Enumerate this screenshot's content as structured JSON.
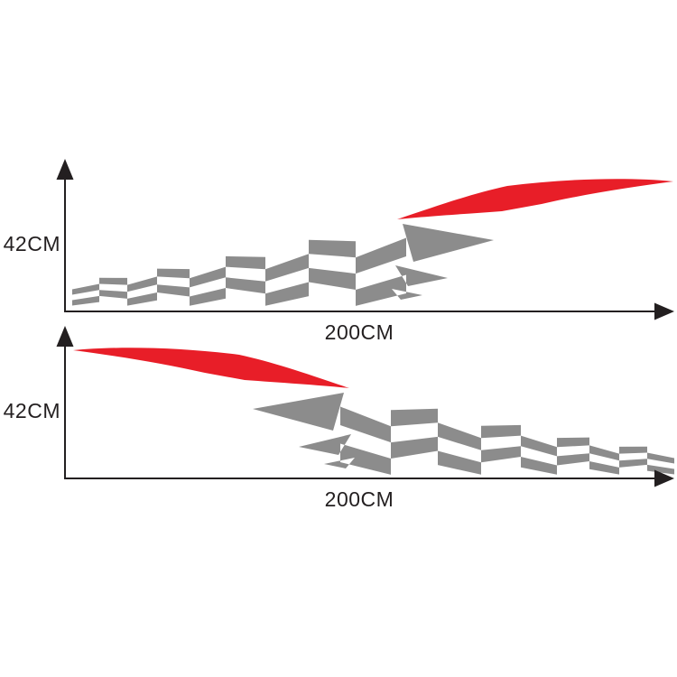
{
  "colors": {
    "background": "#ffffff",
    "flag_gray": "#8c8c8c",
    "accent_red": "#e81e28",
    "axis": "#231f20",
    "text": "#231f20"
  },
  "diagrams": {
    "top": {
      "height_label": "42CM",
      "width_label": "200CM"
    },
    "bottom": {
      "height_label": "42CM",
      "width_label": "200CM"
    }
  }
}
